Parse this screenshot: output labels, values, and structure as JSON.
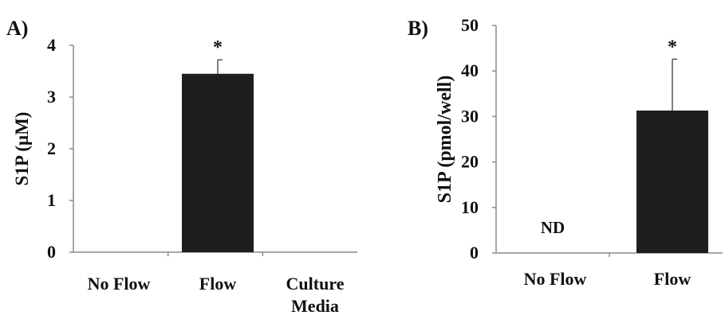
{
  "chart_data": [
    {
      "panel_label": "A)",
      "type": "bar",
      "categories": [
        "No Flow",
        "Flow",
        "Culture\nMedia"
      ],
      "values": [
        null,
        3.45,
        null
      ],
      "error_bars": [
        null,
        0.27,
        null
      ],
      "significance": [
        null,
        "*",
        null
      ],
      "not_detected_labels": [
        null,
        null,
        null
      ],
      "ylabel": "S1P (μM)",
      "xlabel": "",
      "ylim": [
        0,
        4
      ],
      "yticks": [
        0,
        1,
        2,
        3,
        4
      ],
      "bar_color": "#1e1e1e",
      "grid": false,
      "legend": "none"
    },
    {
      "panel_label": "B)",
      "type": "bar",
      "categories": [
        "No Flow",
        "Flow"
      ],
      "values": [
        null,
        31.3
      ],
      "error_bars": [
        null,
        11.3
      ],
      "significance": [
        null,
        "*"
      ],
      "not_detected_labels": [
        "ND",
        null
      ],
      "ylabel": "S1P (pmol/well)",
      "xlabel": "",
      "ylim": [
        0,
        50
      ],
      "yticks": [
        0,
        10,
        20,
        30,
        40,
        50
      ],
      "bar_color": "#1e1e1e",
      "grid": false,
      "legend": "none"
    }
  ]
}
